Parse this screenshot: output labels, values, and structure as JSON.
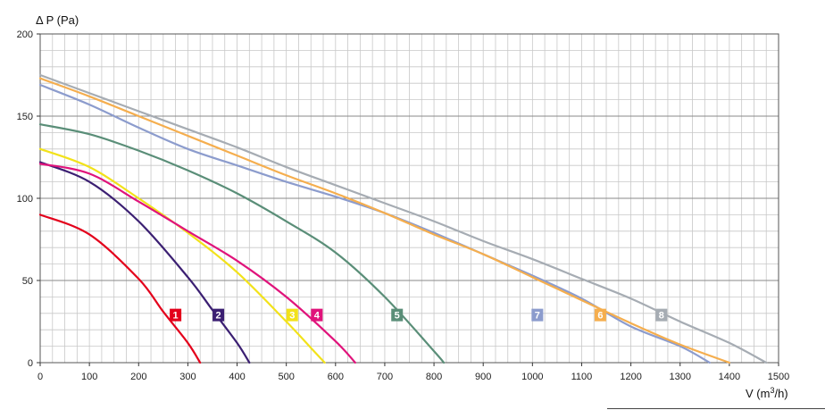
{
  "chart_data": {
    "type": "line",
    "title": "",
    "xlabel": "V (m3/h)",
    "ylabel": "Δ P (Pa)",
    "xlim": [
      0,
      1500
    ],
    "ylim": [
      0,
      200
    ],
    "x_ticks": [
      0,
      100,
      200,
      300,
      400,
      500,
      600,
      700,
      800,
      900,
      1000,
      1100,
      1200,
      1300,
      1400,
      1500
    ],
    "y_ticks": [
      0,
      50,
      100,
      150,
      200
    ],
    "grid": true,
    "series": [
      {
        "name": "1",
        "color": "#e3001b",
        "label_at": [
          275,
          29
        ],
        "x": [
          0,
          100,
          200,
          250,
          300,
          325
        ],
        "y": [
          90,
          78,
          51,
          31,
          12,
          0
        ]
      },
      {
        "name": "2",
        "color": "#3b1f72",
        "label_at": [
          362,
          29
        ],
        "x": [
          0,
          100,
          200,
          300,
          350,
          400,
          425
        ],
        "y": [
          122,
          110,
          86,
          52,
          32,
          12,
          0
        ]
      },
      {
        "name": "3",
        "color": "#f2e21a",
        "label_at": [
          512,
          29
        ],
        "x": [
          0,
          100,
          200,
          300,
          400,
          500,
          550,
          578
        ],
        "y": [
          130,
          119,
          100,
          79,
          55,
          25,
          9,
          0
        ]
      },
      {
        "name": "4",
        "color": "#e0137b",
        "label_at": [
          562,
          29
        ],
        "x": [
          0,
          100,
          200,
          300,
          400,
          500,
          600,
          640
        ],
        "y": [
          121,
          115,
          98,
          80,
          62,
          40,
          13,
          0
        ]
      },
      {
        "name": "5",
        "color": "#5a8e78",
        "label_at": [
          725,
          29
        ],
        "x": [
          0,
          100,
          200,
          300,
          400,
          500,
          600,
          700,
          800,
          820
        ],
        "y": [
          145,
          139,
          129,
          117,
          103,
          86,
          67,
          40,
          7,
          0
        ]
      },
      {
        "name": "7",
        "color": "#8c9ccd",
        "label_at": [
          1010,
          29
        ],
        "x": [
          0,
          100,
          200,
          300,
          400,
          500,
          600,
          700,
          800,
          900,
          1000,
          1100,
          1200,
          1300,
          1360
        ],
        "y": [
          169,
          157,
          143,
          130,
          120,
          110,
          101,
          91,
          79,
          66,
          53,
          39,
          22,
          10,
          0
        ]
      },
      {
        "name": "6",
        "color": "#f5ae4e",
        "label_at": [
          1138,
          29
        ],
        "x": [
          0,
          100,
          200,
          300,
          400,
          500,
          600,
          700,
          800,
          900,
          1000,
          1100,
          1200,
          1300,
          1400
        ],
        "y": [
          173,
          162,
          150,
          138,
          126,
          114,
          103,
          91,
          78,
          66,
          52,
          38,
          24,
          11,
          0
        ]
      },
      {
        "name": "8",
        "color": "#a6acb3",
        "label_at": [
          1262,
          29
        ],
        "x": [
          0,
          100,
          200,
          300,
          400,
          500,
          600,
          700,
          800,
          900,
          1000,
          1100,
          1200,
          1300,
          1400,
          1475
        ],
        "y": [
          175,
          164,
          153,
          142,
          131,
          119,
          108,
          97,
          86,
          74,
          63,
          51,
          39,
          25,
          12,
          0
        ]
      }
    ]
  }
}
